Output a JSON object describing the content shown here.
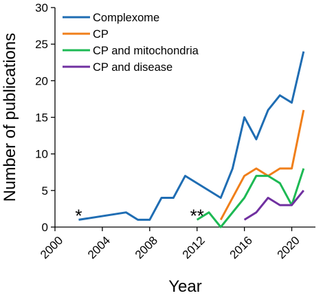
{
  "chart_data": {
    "type": "line",
    "xlabel": "Year",
    "ylabel": "Number of publications",
    "xlim": [
      2000,
      2022
    ],
    "ylim": [
      0,
      30
    ],
    "x_ticks": [
      2000,
      2004,
      2008,
      2012,
      2016,
      2020
    ],
    "y_ticks": [
      0,
      5,
      10,
      15,
      20,
      25,
      30
    ],
    "grid": false,
    "legend_position": "top-left",
    "series": [
      {
        "name": "Complexome",
        "color": "#1f6db3",
        "points": [
          [
            2002,
            1
          ],
          [
            2006,
            2
          ],
          [
            2007,
            1
          ],
          [
            2008,
            1
          ],
          [
            2009,
            4
          ],
          [
            2010,
            4
          ],
          [
            2011,
            7
          ],
          [
            2014,
            4
          ],
          [
            2015,
            8
          ],
          [
            2016,
            15
          ],
          [
            2017,
            12
          ],
          [
            2018,
            16
          ],
          [
            2019,
            18
          ],
          [
            2020,
            17
          ],
          [
            2021,
            24
          ]
        ]
      },
      {
        "name": "CP",
        "color": "#f07f1a",
        "points": [
          [
            2014,
            1
          ],
          [
            2016,
            7
          ],
          [
            2017,
            8
          ],
          [
            2018,
            7
          ],
          [
            2019,
            8
          ],
          [
            2020,
            8
          ],
          [
            2021,
            16
          ]
        ]
      },
      {
        "name": "CP and mitochondria",
        "color": "#1db954",
        "points": [
          [
            2012,
            1
          ],
          [
            2013,
            2
          ],
          [
            2014,
            0
          ],
          [
            2016,
            4
          ],
          [
            2017,
            7
          ],
          [
            2018,
            7
          ],
          [
            2019,
            6
          ],
          [
            2020,
            3
          ],
          [
            2021,
            8
          ]
        ]
      },
      {
        "name": "CP and disease",
        "color": "#7030a0",
        "points": [
          [
            2016,
            1
          ],
          [
            2017,
            2
          ],
          [
            2018,
            4
          ],
          [
            2019,
            3
          ],
          [
            2020,
            3
          ],
          [
            2021,
            5
          ]
        ]
      }
    ],
    "annotations": [
      {
        "text": "*",
        "x": 2002,
        "y": 2
      },
      {
        "text": "**",
        "x": 2012,
        "y": 2
      }
    ]
  }
}
